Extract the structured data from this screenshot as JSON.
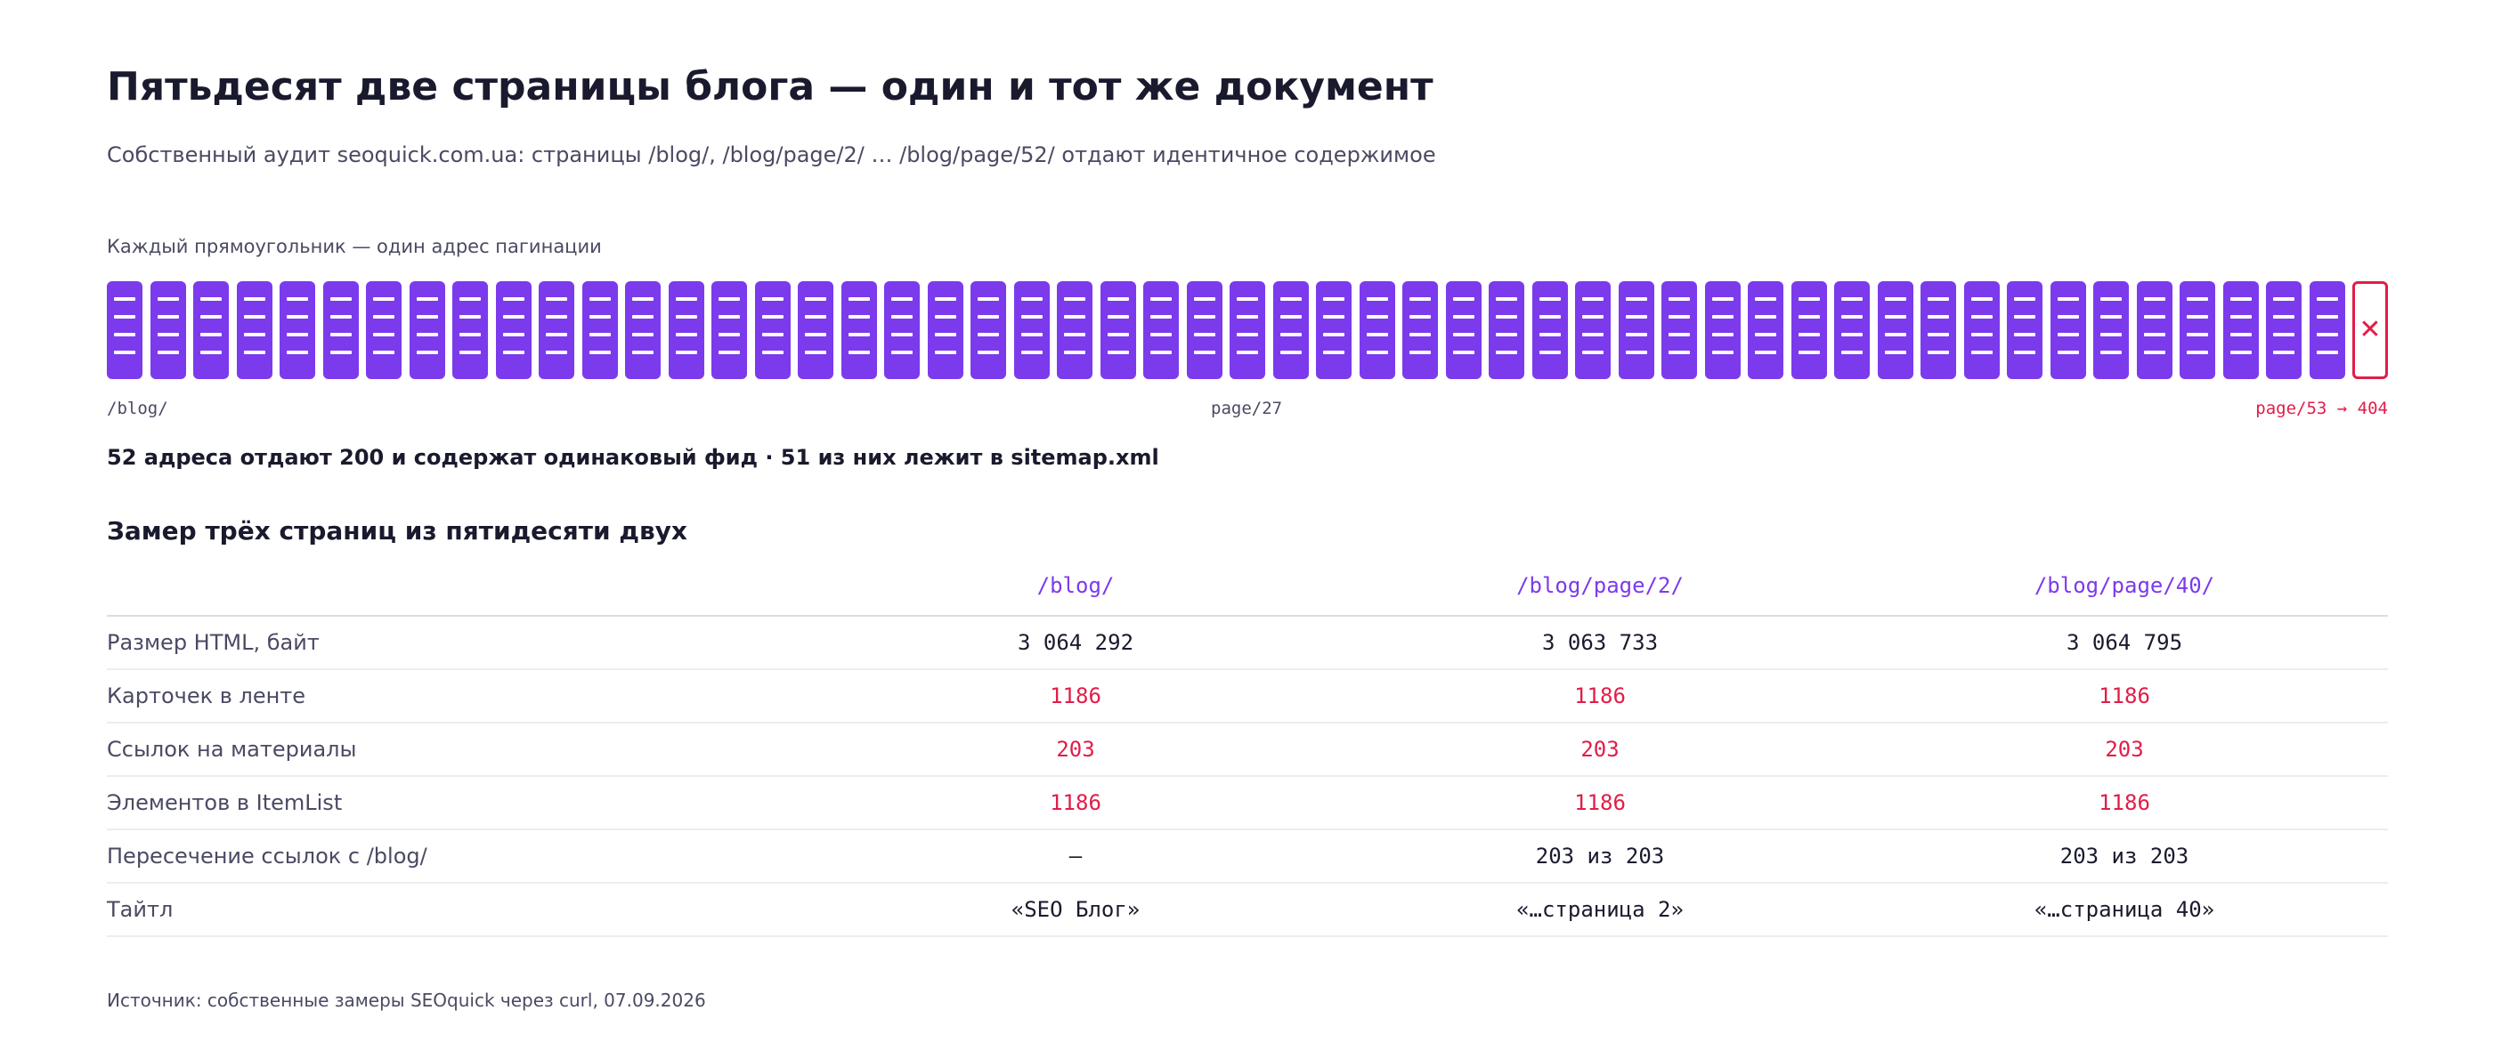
{
  "title": "Пятьдесят две страницы блога — один и тот же документ",
  "subtitle": "Собственный аудит seoquick.com.ua: страницы /blog/, /blog/page/2/ … /blog/page/52/ отдают идентичное содержимое",
  "strip": {
    "caption": "Каждый прямоугольник — один адрес пагинации",
    "live_pages": 52,
    "dead_pages": 1,
    "dead_mark": "✕",
    "label_first": "/blog/",
    "label_mid": "page/27",
    "label_last": "page/53 → 404",
    "colors": {
      "live": "#7c3aed",
      "dead": "#e11d48"
    }
  },
  "summary": "52 адреса отдают 200 и содержат одинаковый фид · 51 из них лежит в sitemap.xml",
  "table": {
    "title": "Замер трёх страниц из пятидесяти двух",
    "columns": [
      "/blog/",
      "/blog/page/2/",
      "/blog/page/40/"
    ],
    "rows": [
      {
        "label": "Размер HTML, байт",
        "values": [
          "3 064 292",
          "3 063 733",
          "3 064 795"
        ],
        "highlight": false
      },
      {
        "label": "Карточек в ленте",
        "values": [
          "1186",
          "1186",
          "1186"
        ],
        "highlight": true
      },
      {
        "label": "Ссылок на материалы",
        "values": [
          "203",
          "203",
          "203"
        ],
        "highlight": true
      },
      {
        "label": "Элементов в ItemList",
        "values": [
          "1186",
          "1186",
          "1186"
        ],
        "highlight": true
      },
      {
        "label": "Пересечение ссылок с /blog/",
        "values": [
          "—",
          "203 из 203",
          "203 из 203"
        ],
        "highlight": false
      },
      {
        "label": "Тайтл",
        "values": [
          "«SEO Блог»",
          "«…страница 2»",
          "«…страница 40»"
        ],
        "highlight": false
      }
    ]
  },
  "source": "Источник: собственные замеры SEOquick через curl, 07.09.2026"
}
